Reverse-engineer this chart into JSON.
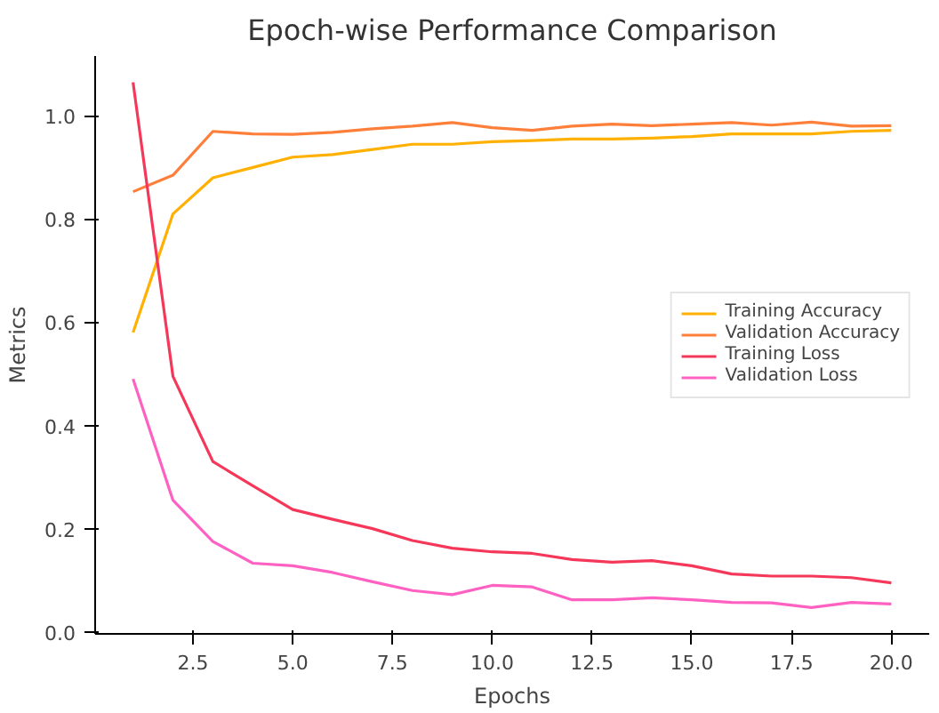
{
  "chart_data": {
    "type": "line",
    "title": "Epoch-wise Performance Comparison",
    "xlabel": "Epochs",
    "ylabel": "Metrics",
    "x": [
      1,
      2,
      3,
      4,
      5,
      6,
      7,
      8,
      9,
      10,
      11,
      12,
      13,
      14,
      15,
      16,
      17,
      18,
      19,
      20
    ],
    "series": [
      {
        "name": "Training Accuracy",
        "color": "#ffb000",
        "values": [
          0.58,
          0.81,
          0.88,
          0.9,
          0.92,
          0.925,
          0.935,
          0.945,
          0.945,
          0.95,
          0.952,
          0.955,
          0.955,
          0.957,
          0.96,
          0.965,
          0.965,
          0.965,
          0.97,
          0.972
        ]
      },
      {
        "name": "Validation Accuracy",
        "color": "#fe7f3a",
        "values": [
          0.853,
          0.885,
          0.97,
          0.965,
          0.964,
          0.968,
          0.975,
          0.98,
          0.987,
          0.977,
          0.972,
          0.98,
          0.984,
          0.981,
          0.984,
          0.987,
          0.982,
          0.988,
          0.98,
          0.981
        ]
      },
      {
        "name": "Training Loss",
        "color": "#f5385a",
        "values": [
          1.065,
          0.495,
          0.33,
          0.283,
          0.237,
          0.218,
          0.2,
          0.177,
          0.162,
          0.155,
          0.152,
          0.14,
          0.135,
          0.138,
          0.128,
          0.112,
          0.108,
          0.108,
          0.105,
          0.095
        ]
      },
      {
        "name": "Validation Loss",
        "color": "#ff61c3",
        "values": [
          0.49,
          0.255,
          0.175,
          0.133,
          0.128,
          0.115,
          0.097,
          0.08,
          0.072,
          0.09,
          0.087,
          0.062,
          0.062,
          0.066,
          0.062,
          0.057,
          0.056,
          0.047,
          0.057,
          0.054
        ]
      }
    ],
    "xlim": [
      0.05,
      20.95
    ],
    "ylim": [
      -0.004,
      1.116
    ],
    "xticks": [
      {
        "value": 2.5,
        "label": "2.5"
      },
      {
        "value": 5,
        "label": "5.0"
      },
      {
        "value": 7.5,
        "label": "7.5"
      },
      {
        "value": 10,
        "label": "10.0"
      },
      {
        "value": 12.5,
        "label": "12.5"
      },
      {
        "value": 15,
        "label": "15.0"
      },
      {
        "value": 17.5,
        "label": "17.5"
      },
      {
        "value": 20,
        "label": "20.0"
      }
    ],
    "yticks": [
      {
        "value": 0,
        "label": "0.0"
      },
      {
        "value": 0.2,
        "label": "0.2"
      },
      {
        "value": 0.4,
        "label": "0.4"
      },
      {
        "value": 0.6,
        "label": "0.6"
      },
      {
        "value": 0.8,
        "label": "0.8"
      },
      {
        "value": 1,
        "label": "1.0"
      }
    ],
    "grid": false,
    "legend": "right",
    "marker": "none",
    "line_style": "solid"
  }
}
